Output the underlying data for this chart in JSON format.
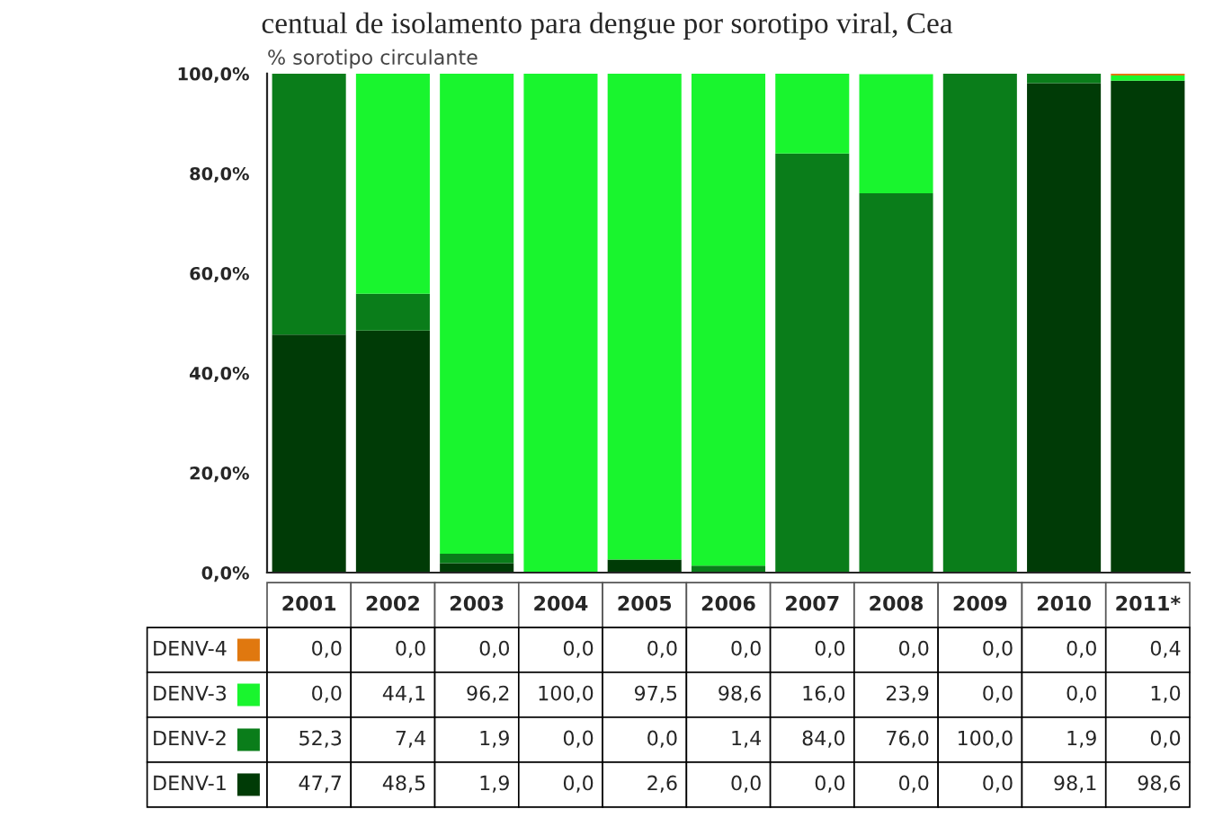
{
  "chart_data": {
    "type": "bar",
    "stacked": true,
    "title": "centual de isolamento para dengue por sorotipo viral, Cea",
    "ylabel": "% sorotipo circulante",
    "categories": [
      "2001",
      "2002",
      "2003",
      "2004",
      "2005",
      "2006",
      "2007",
      "2008",
      "2009",
      "2010",
      "2011*"
    ],
    "series": [
      {
        "name": "DENV-1",
        "color": "#003b06",
        "values": [
          47.7,
          48.5,
          1.9,
          0.0,
          2.6,
          0.0,
          0.0,
          0.0,
          0.0,
          98.1,
          98.6
        ],
        "value_labels": [
          "47,7",
          "48,5",
          "1,9",
          "0,0",
          "2,6",
          "0,0",
          "0,0",
          "0,0",
          "0,0",
          "98,1",
          "98,6"
        ]
      },
      {
        "name": "DENV-2",
        "color": "#0a7d1a",
        "values": [
          52.3,
          7.4,
          1.9,
          0.0,
          0.0,
          1.4,
          84.0,
          76.0,
          100.0,
          1.9,
          0.0
        ],
        "value_labels": [
          "52,3",
          "7,4",
          "1,9",
          "0,0",
          "0,0",
          "1,4",
          "84,0",
          "76,0",
          "100,0",
          "1,9",
          "0,0"
        ]
      },
      {
        "name": "DENV-3",
        "color": "#19f52e",
        "values": [
          0.0,
          44.1,
          96.2,
          100.0,
          97.5,
          98.6,
          16.0,
          23.9,
          0.0,
          0.0,
          1.0
        ],
        "value_labels": [
          "0,0",
          "44,1",
          "96,2",
          "100,0",
          "97,5",
          "98,6",
          "16,0",
          "23,9",
          "0,0",
          "0,0",
          "1,0"
        ]
      },
      {
        "name": "DENV-4",
        "color": "#e0780f",
        "values": [
          0.0,
          0.0,
          0.0,
          0.0,
          0.0,
          0.0,
          0.0,
          0.0,
          0.0,
          0.0,
          0.4
        ],
        "value_labels": [
          "0,0",
          "0,0",
          "0,0",
          "0,0",
          "0,0",
          "0,0",
          "0,0",
          "0,0",
          "0,0",
          "0,0",
          "0,4"
        ]
      }
    ],
    "ylim": [
      0,
      100
    ],
    "yticks": [
      {
        "value": 0,
        "label": "0,0%"
      },
      {
        "value": 20,
        "label": "20,0%"
      },
      {
        "value": 40,
        "label": "40,0%"
      },
      {
        "value": 60,
        "label": "60,0%"
      },
      {
        "value": 80,
        "label": "80,0%"
      },
      {
        "value": 100,
        "label": "100,0%"
      }
    ],
    "grid": false,
    "legend": "bottom left"
  }
}
